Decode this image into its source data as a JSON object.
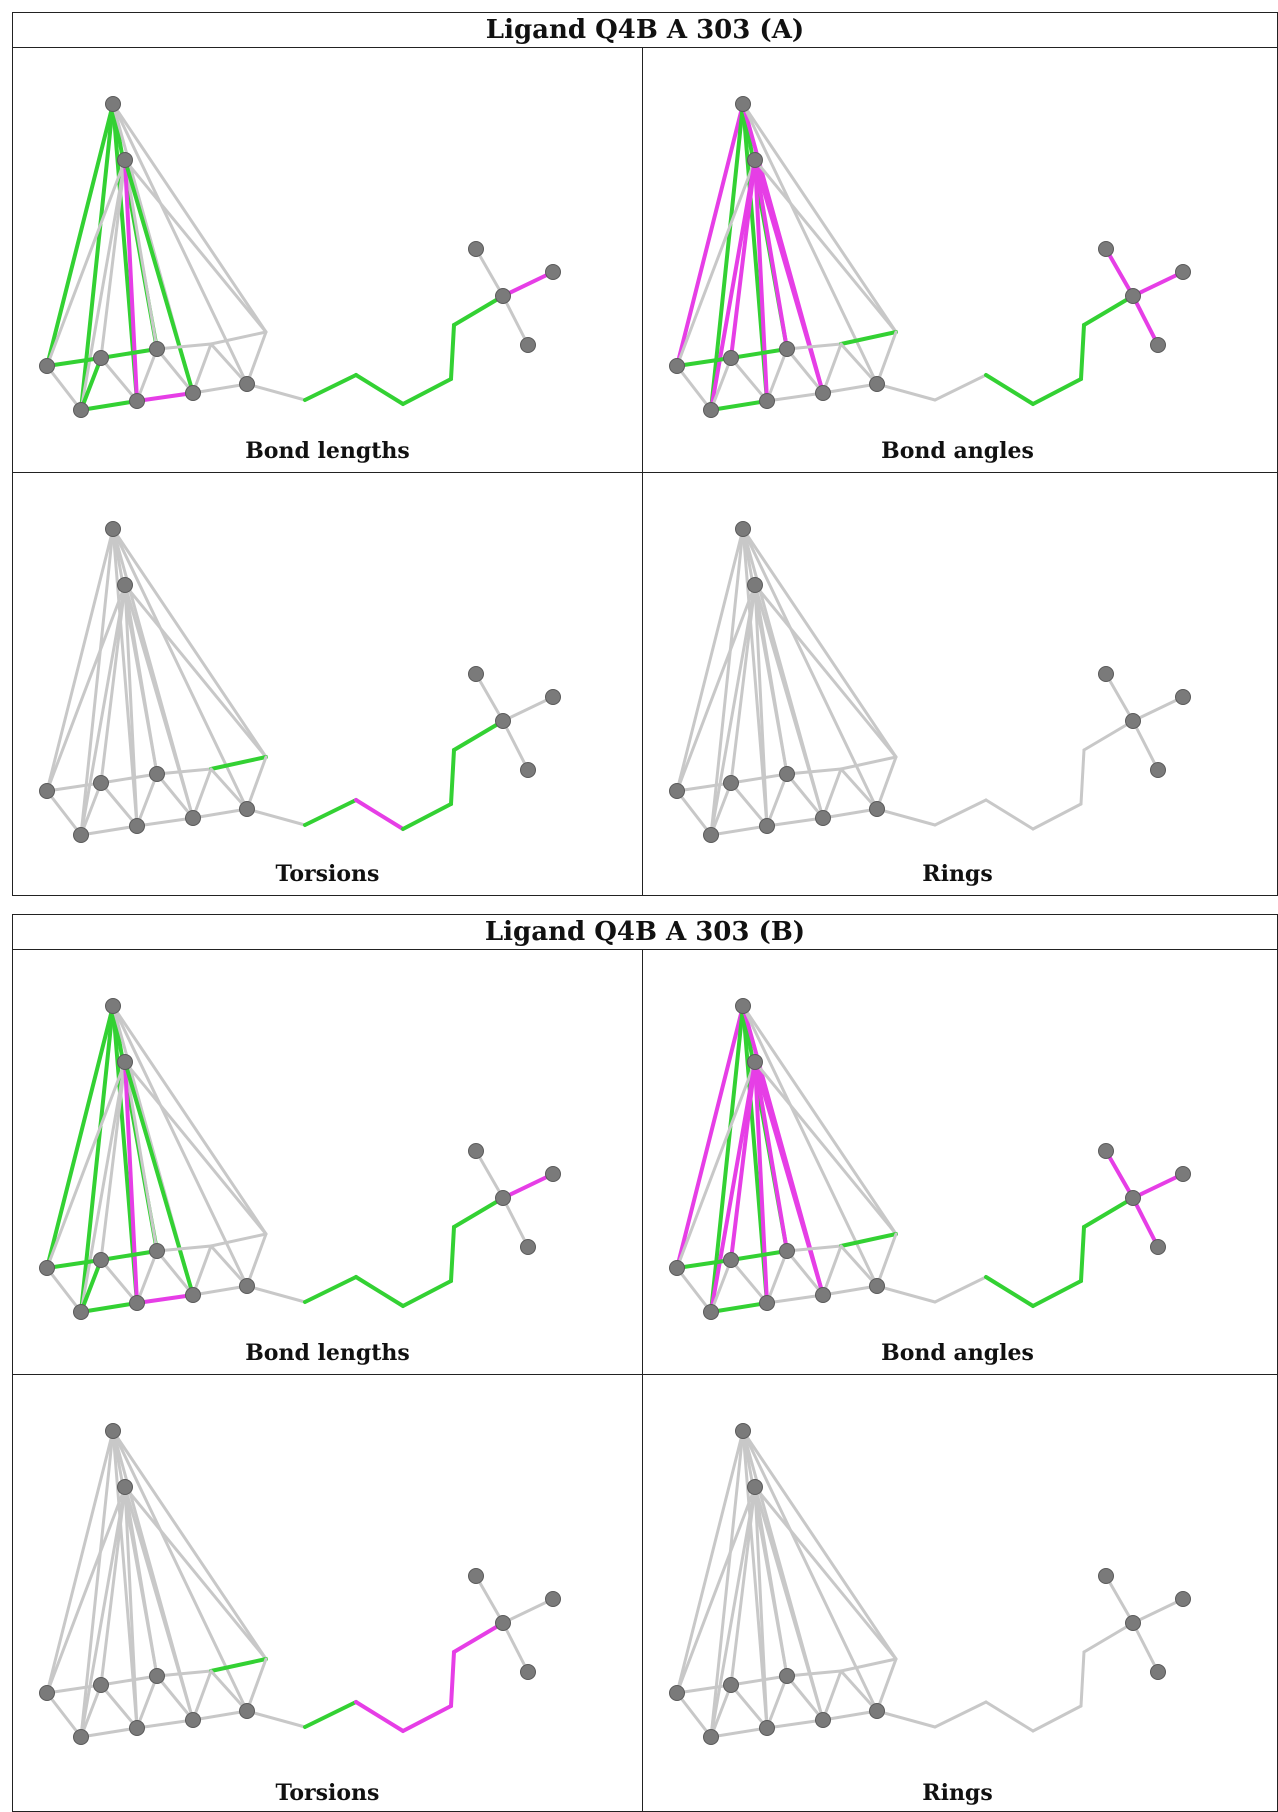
{
  "colors": {
    "neutral": "#c8c8c8",
    "ok": "#33d133",
    "outlier": "#e63ee6",
    "atom": "#7a7a7a"
  },
  "blocks": [
    {
      "title": "Ligand Q4B A 303 (A)",
      "panels": [
        {
          "label": "Bond lengths"
        },
        {
          "label": "Bond angles"
        },
        {
          "label": "Torsions"
        },
        {
          "label": "Rings"
        }
      ]
    },
    {
      "title": "Ligand Q4B A 303 (B)",
      "panels": [
        {
          "label": "Bond lengths"
        },
        {
          "label": "Bond angles"
        },
        {
          "label": "Torsions"
        },
        {
          "label": "Rings"
        }
      ]
    }
  ],
  "bond_color_status": {
    "bond_lengths_A": {
      "ok": [
        [
          0,
          2
        ],
        [
          0,
          4
        ],
        [
          0,
          5
        ],
        [
          0,
          6
        ],
        [
          1,
          7
        ],
        [
          2,
          3
        ],
        [
          3,
          4
        ],
        [
          3,
          5
        ],
        [
          2,
          4
        ],
        [
          4,
          5
        ],
        [
          5,
          6
        ],
        [
          10,
          11
        ],
        [
          11,
          12
        ],
        [
          12,
          13
        ],
        [
          13,
          14
        ],
        [
          14,
          15
        ],
        [
          15,
          16
        ]
      ],
      "outlier": [
        [
          1,
          6
        ],
        [
          6,
          7
        ],
        [
          16,
          18
        ]
      ]
    },
    "bond_angles_A": {
      "ok": [
        [
          0,
          4
        ],
        [
          0,
          5
        ],
        [
          0,
          6
        ],
        [
          2,
          3
        ],
        [
          3,
          4
        ],
        [
          4,
          5
        ],
        [
          5,
          6
        ],
        [
          9,
          10
        ],
        [
          10,
          11
        ],
        [
          12,
          13
        ],
        [
          13,
          14
        ],
        [
          14,
          15
        ],
        [
          15,
          16
        ]
      ],
      "outlier": [
        [
          0,
          2
        ],
        [
          1,
          3
        ],
        [
          1,
          4
        ],
        [
          1,
          5
        ],
        [
          1,
          6
        ],
        [
          1,
          7
        ],
        [
          0,
          7
        ],
        [
          16,
          17
        ],
        [
          16,
          18
        ],
        [
          16,
          19
        ]
      ]
    },
    "torsions_A": {
      "ok": [
        [
          9,
          10
        ],
        [
          11,
          12
        ],
        [
          13,
          14
        ],
        [
          14,
          15
        ],
        [
          15,
          16
        ]
      ],
      "outlier": [
        [
          10,
          11
        ],
        [
          12,
          13
        ]
      ]
    },
    "rings_A": {
      "ok": [],
      "outlier": []
    },
    "bond_lengths_B": {
      "ok": [
        [
          0,
          2
        ],
        [
          0,
          4
        ],
        [
          0,
          5
        ],
        [
          0,
          6
        ],
        [
          1,
          7
        ],
        [
          2,
          3
        ],
        [
          3,
          4
        ],
        [
          3,
          5
        ],
        [
          2,
          4
        ],
        [
          4,
          5
        ],
        [
          5,
          6
        ],
        [
          10,
          11
        ],
        [
          11,
          12
        ],
        [
          12,
          13
        ],
        [
          13,
          14
        ],
        [
          14,
          15
        ],
        [
          15,
          16
        ]
      ],
      "outlier": [
        [
          1,
          6
        ],
        [
          6,
          7
        ],
        [
          16,
          18
        ]
      ]
    },
    "bond_angles_B": {
      "ok": [
        [
          0,
          4
        ],
        [
          0,
          5
        ],
        [
          0,
          6
        ],
        [
          2,
          3
        ],
        [
          3,
          4
        ],
        [
          4,
          5
        ],
        [
          5,
          6
        ],
        [
          9,
          10
        ],
        [
          10,
          11
        ],
        [
          12,
          13
        ],
        [
          13,
          14
        ],
        [
          14,
          15
        ],
        [
          15,
          16
        ]
      ],
      "outlier": [
        [
          0,
          2
        ],
        [
          1,
          3
        ],
        [
          1,
          4
        ],
        [
          1,
          5
        ],
        [
          1,
          6
        ],
        [
          1,
          7
        ],
        [
          0,
          7
        ],
        [
          16,
          17
        ],
        [
          16,
          18
        ],
        [
          16,
          19
        ]
      ]
    },
    "torsions_B": {
      "ok": [
        [
          9,
          10
        ],
        [
          11,
          12
        ]
      ],
      "outlier": [
        [
          10,
          11
        ],
        [
          12,
          13
        ],
        [
          13,
          14
        ],
        [
          14,
          15
        ],
        [
          15,
          16
        ]
      ]
    },
    "rings_B": {
      "ok": [],
      "outlier": []
    }
  }
}
